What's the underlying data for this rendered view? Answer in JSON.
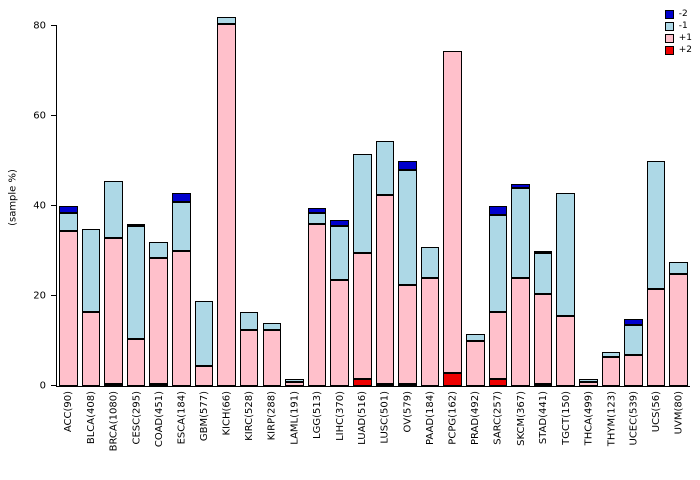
{
  "figure": {
    "background": "#ffffff"
  },
  "y_axis": {
    "label": "(sample %)",
    "ticks": [
      0,
      20,
      40,
      60,
      80
    ]
  },
  "legend": {
    "position": "top-right",
    "items": [
      {
        "label": "-2",
        "color": "#0000CD"
      },
      {
        "label": "-1",
        "color": "#ADD8E6"
      },
      {
        "label": "+1",
        "color": "#FFC0CB"
      },
      {
        "label": "+2",
        "color": "#EE0000"
      }
    ]
  },
  "chart_data": {
    "type": "bar",
    "stacked": true,
    "title": "",
    "xlabel": "",
    "ylabel": "(sample %)",
    "ylim": [
      0,
      83.5
    ],
    "grid": false,
    "legend_position": "top-right",
    "stack_order_bottom_to_top": [
      "+2",
      "+1",
      "-1",
      "-2"
    ],
    "categories": [
      "ACC(90)",
      "BLCA(408)",
      "BRCA(1080)",
      "CESC(295)",
      "COAD(451)",
      "ESCA(184)",
      "GBM(577)",
      "KICH(66)",
      "KIRC(528)",
      "KIRP(288)",
      "LAML(191)",
      "LGG(513)",
      "LIHC(370)",
      "LUAD(516)",
      "LUSC(501)",
      "OV(579)",
      "PAAD(184)",
      "PCPG(162)",
      "PRAD(492)",
      "SARC(257)",
      "SKCM(367)",
      "STAD(441)",
      "TGCT(150)",
      "THCA(499)",
      "THYM(123)",
      "UCEC(539)",
      "UCS(56)",
      "UVM(80)"
    ],
    "series": [
      {
        "name": "+2",
        "color": "#EE0000",
        "values": [
          0,
          0,
          0.5,
          0,
          0.5,
          0,
          0,
          0,
          0,
          0,
          0,
          0,
          0,
          1.5,
          0.5,
          0.5,
          0,
          3,
          0,
          1.5,
          0,
          0.5,
          0,
          0,
          0,
          0,
          0,
          0
        ]
      },
      {
        "name": "+1",
        "color": "#FFC0CB",
        "values": [
          34.5,
          16.5,
          32.5,
          10.5,
          28,
          30,
          4.5,
          80.5,
          12.5,
          12.5,
          1,
          36,
          23.5,
          28,
          42,
          22,
          24,
          71.5,
          10,
          15,
          24,
          20,
          15.5,
          1,
          6.5,
          7,
          21.5,
          25
        ]
      },
      {
        "name": "-1",
        "color": "#ADD8E6",
        "values": [
          4,
          18.5,
          12.5,
          25,
          3.5,
          11,
          14.5,
          1.5,
          4,
          1.5,
          0.5,
          2.5,
          12,
          22,
          12,
          25.5,
          7,
          0,
          1.5,
          21.5,
          20,
          9,
          27.5,
          0.5,
          1,
          6.5,
          28.5,
          2.5
        ]
      },
      {
        "name": "-2",
        "color": "#0000CD",
        "values": [
          1.5,
          0,
          0,
          0.5,
          0,
          2,
          0,
          0,
          0,
          0,
          0,
          1,
          1.5,
          0,
          0,
          2,
          0,
          0,
          0,
          2,
          1,
          0.5,
          0,
          0,
          0,
          1.5,
          0,
          0
        ]
      }
    ]
  }
}
